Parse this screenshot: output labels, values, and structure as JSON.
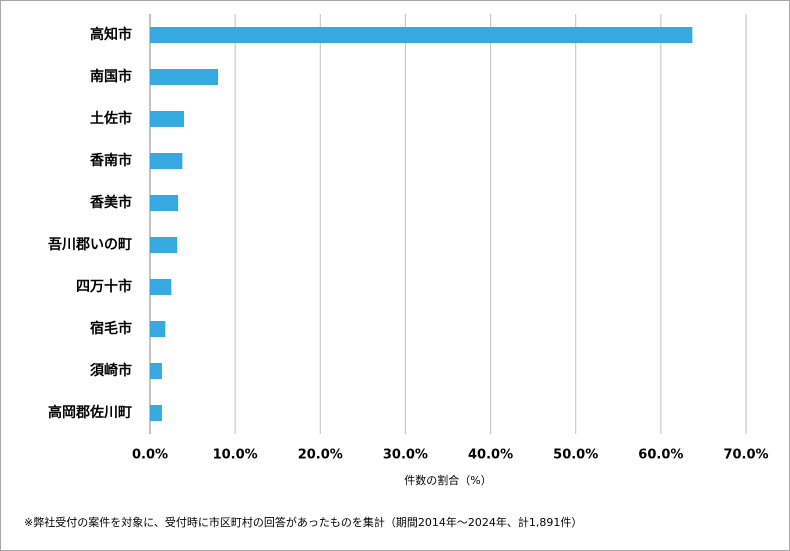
{
  "chart_data": {
    "type": "bar",
    "orientation": "horizontal",
    "categories": [
      "高知市",
      "南国市",
      "土佐市",
      "香南市",
      "香美市",
      "吾川郡いの町",
      "四万十市",
      "宿毛市",
      "須崎市",
      "高岡郡佐川町"
    ],
    "values": [
      63.7,
      8.0,
      4.0,
      3.8,
      3.3,
      3.2,
      2.5,
      1.8,
      1.4,
      1.4
    ],
    "color": "#36a9e1",
    "xlim": [
      0,
      70
    ],
    "xticks": [
      {
        "value": 0,
        "label": "0.0%"
      },
      {
        "value": 10,
        "label": "10.0%"
      },
      {
        "value": 20,
        "label": "20.0%"
      },
      {
        "value": 30,
        "label": "30.0%"
      },
      {
        "value": 40,
        "label": "40.0%"
      },
      {
        "value": 50,
        "label": "50.0%"
      },
      {
        "value": 60,
        "label": "60.0%"
      },
      {
        "value": 70,
        "label": "70.0%"
      }
    ],
    "grid": true,
    "xlabel": "件数の割合（%）",
    "footnote": "※弊社受付の案件を対象に、受付時に市区町村の回答があったものを集計（期間2014年～2024年、計1,891件）"
  }
}
